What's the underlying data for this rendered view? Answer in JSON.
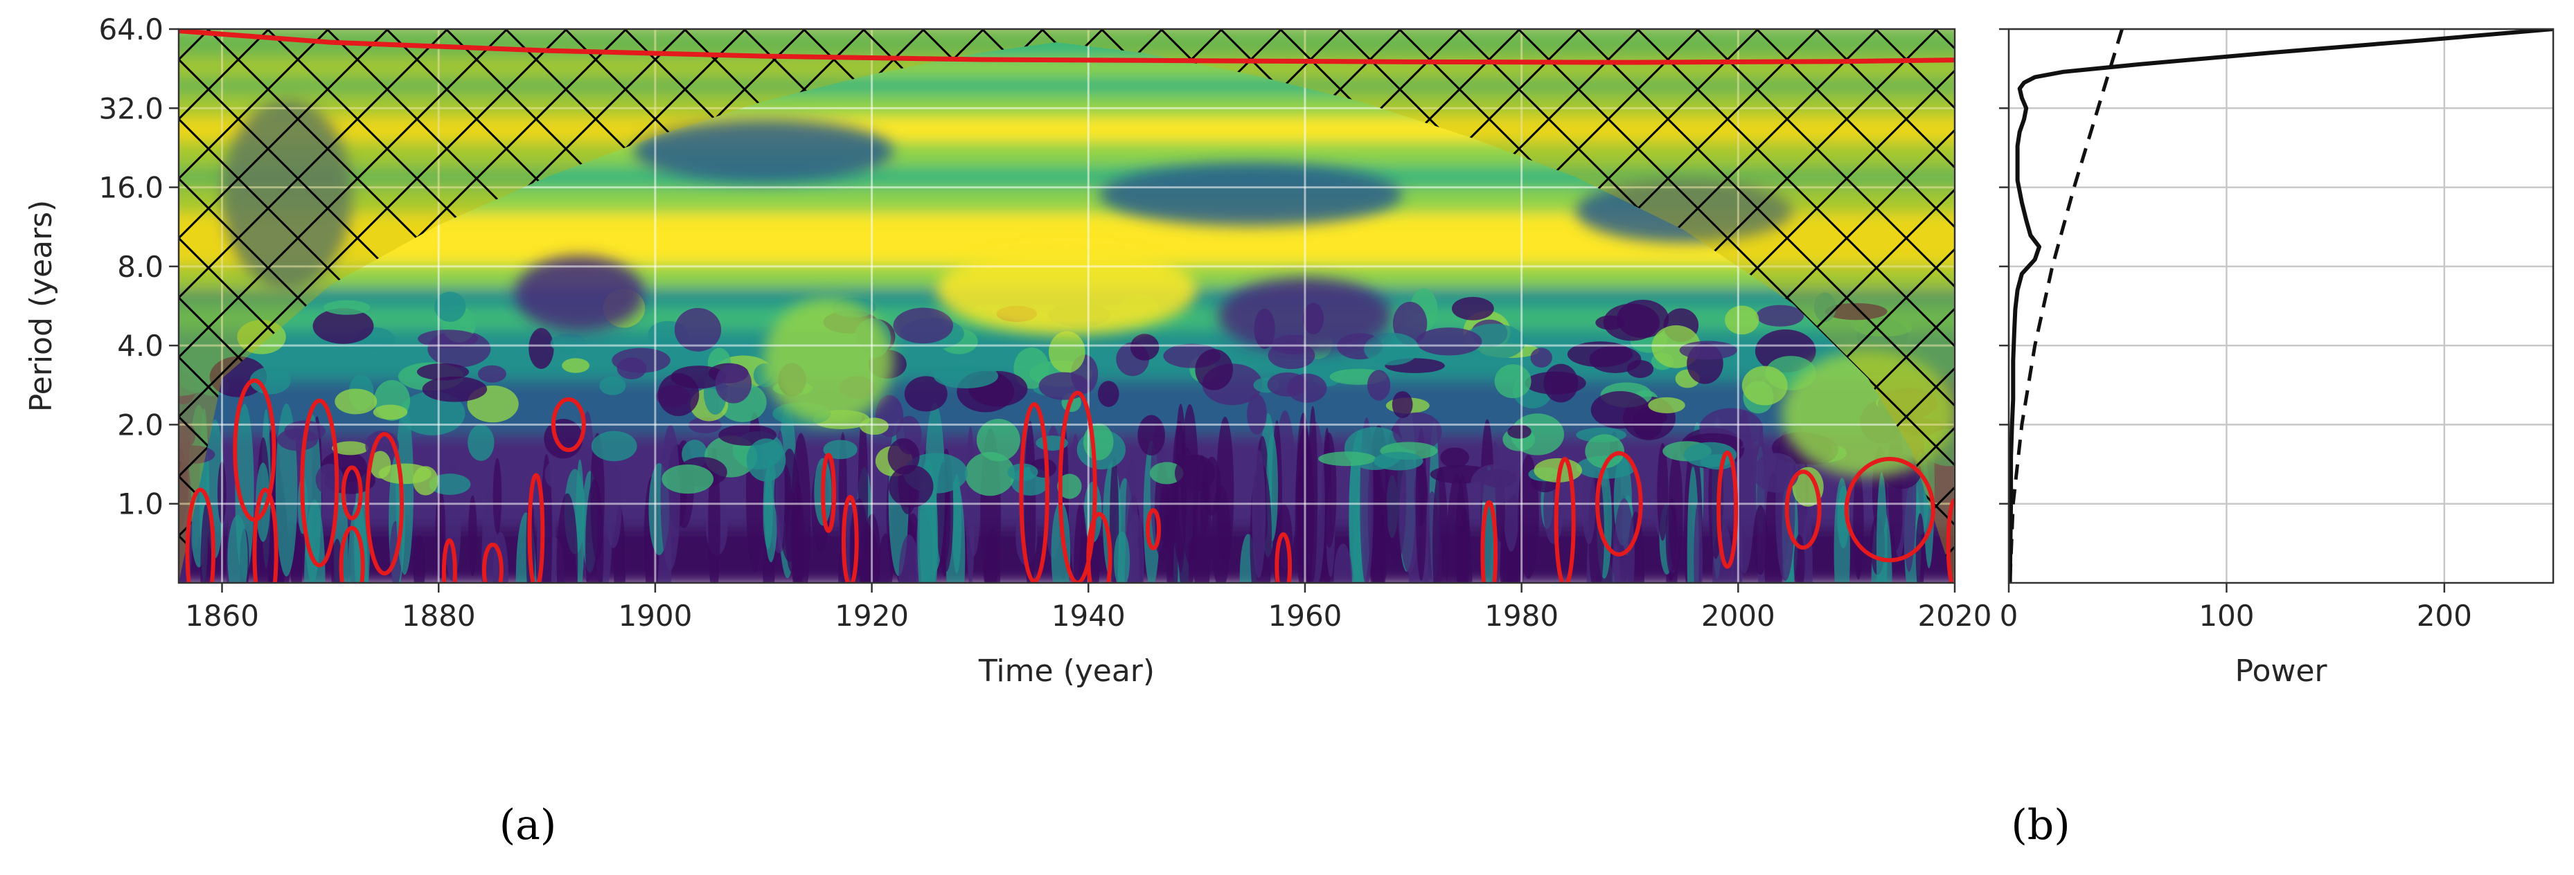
{
  "colors": {
    "viridis": [
      "#3b0a5e",
      "#472a7a",
      "#2c5d8a",
      "#21908c",
      "#3cb878",
      "#8fd24a",
      "#fde725"
    ],
    "significance": "#e41a1c",
    "global_power": "#111111"
  },
  "chart_data": [
    {
      "type": "heatmap",
      "panel_label": "(a)",
      "title": "",
      "xlabel": "Time (year)",
      "ylabel": "Period (years)",
      "xlim": [
        1856,
        2020
      ],
      "ylim": [
        0.5,
        64
      ],
      "y_scale": "log2",
      "x_ticks": [
        1860,
        1880,
        1900,
        1920,
        1940,
        1960,
        1980,
        2000,
        2020
      ],
      "y_ticks": [
        {
          "value": 1,
          "label": "1.0"
        },
        {
          "value": 2,
          "label": "2.0"
        },
        {
          "value": 4,
          "label": "4.0"
        },
        {
          "value": 8,
          "label": "8.0"
        },
        {
          "value": 16,
          "label": "16.0"
        },
        {
          "value": 32,
          "label": "32.0"
        },
        {
          "value": 64,
          "label": "64.0"
        }
      ],
      "grid": true,
      "colormap": "viridis",
      "cone_of_influence": {
        "shading": "hatched",
        "x": [
          1856,
          1860,
          1870,
          1880,
          1890,
          1900,
          1910,
          1920,
          1930,
          1937,
          1945,
          1955,
          1965,
          1975,
          1985,
          1995,
          2005,
          2012,
          2016,
          2020
        ],
        "period": [
          0.5,
          3.0,
          6.8,
          11.5,
          17.5,
          25.0,
          34.0,
          43.0,
          52.0,
          57.0,
          52.0,
          43.0,
          34.0,
          25.0,
          17.5,
          11.0,
          5.8,
          3.0,
          1.6,
          0.5
        ]
      },
      "significance_line": {
        "x": [
          1856,
          1870,
          1890,
          1910,
          1930,
          1950,
          1970,
          1990,
          2010,
          2020
        ],
        "period": [
          63.0,
          57.0,
          53.0,
          50.5,
          49.0,
          48.5,
          48.0,
          47.8,
          48.2,
          48.8
        ]
      },
      "power_bands": [
        {
          "period": 64,
          "level": 4
        },
        {
          "period": 52,
          "level": 4
        },
        {
          "period": 45,
          "level": 5
        },
        {
          "period": 38,
          "level": 4
        },
        {
          "period": 32,
          "level": 5
        },
        {
          "period": 26,
          "level": 6
        },
        {
          "period": 21,
          "level": 5
        },
        {
          "period": 17,
          "level": 4
        },
        {
          "period": 14,
          "level": 5
        },
        {
          "period": 11,
          "level": 6
        },
        {
          "period": 9,
          "level": 6
        },
        {
          "period": 7,
          "level": 5
        },
        {
          "period": 6,
          "level": 3
        },
        {
          "period": 5,
          "level": 4
        },
        {
          "period": 4,
          "level": 3
        },
        {
          "period": 3.2,
          "level": 3
        },
        {
          "period": 2.6,
          "level": 2
        },
        {
          "period": 2.0,
          "level": 2
        },
        {
          "period": 1.6,
          "level": 1
        },
        {
          "period": 1.2,
          "level": 1
        },
        {
          "period": 0.9,
          "level": 1
        },
        {
          "period": 0.7,
          "level": 0
        },
        {
          "period": 0.5,
          "level": 0
        }
      ],
      "features": [
        {
          "x": 1893,
          "period": 6.3,
          "dx": 6,
          "dp": 0.12,
          "level": 1
        },
        {
          "x": 1910,
          "period": 22,
          "dx": 12,
          "dp": 0.1,
          "level": 2
        },
        {
          "x": 1955,
          "period": 15,
          "dx": 14,
          "dp": 0.1,
          "level": 2
        },
        {
          "x": 1960,
          "period": 5.2,
          "dx": 8,
          "dp": 0.12,
          "level": 1
        },
        {
          "x": 1995,
          "period": 13,
          "dx": 10,
          "dp": 0.1,
          "level": 2
        },
        {
          "x": 1938,
          "period": 6.5,
          "dx": 12,
          "dp": 0.14,
          "level": 6
        },
        {
          "x": 1916,
          "period": 3.5,
          "dx": 6,
          "dp": 0.2,
          "level": 5
        },
        {
          "x": 2012,
          "period": 2.2,
          "dx": 8,
          "dp": 0.2,
          "level": 5
        },
        {
          "x": 1866,
          "period": 15,
          "dx": 6,
          "dp": 0.3,
          "level": 2
        }
      ],
      "significant_regions": [
        {
          "x": 1863,
          "period": 1.6,
          "dx": 1.8,
          "dp": 0.22
        },
        {
          "x": 1869,
          "period": 1.2,
          "dx": 1.6,
          "dp": 0.26
        },
        {
          "x": 1875,
          "period": 1.0,
          "dx": 1.6,
          "dp": 0.22
        },
        {
          "x": 1872,
          "period": 1.1,
          "dx": 0.8,
          "dp": 0.08
        },
        {
          "x": 1858,
          "period": 0.65,
          "dx": 1.2,
          "dp": 0.2
        },
        {
          "x": 1864,
          "period": 0.65,
          "dx": 1.0,
          "dp": 0.2
        },
        {
          "x": 1872,
          "period": 0.58,
          "dx": 1.0,
          "dp": 0.12
        },
        {
          "x": 1881,
          "period": 0.55,
          "dx": 0.5,
          "dp": 0.1
        },
        {
          "x": 1885,
          "period": 0.56,
          "dx": 0.8,
          "dp": 0.08
        },
        {
          "x": 1892,
          "period": 2.0,
          "dx": 1.4,
          "dp": 0.08
        },
        {
          "x": 1889,
          "period": 0.78,
          "dx": 0.6,
          "dp": 0.18
        },
        {
          "x": 1916,
          "period": 1.1,
          "dx": 0.5,
          "dp": 0.12
        },
        {
          "x": 1918,
          "period": 0.72,
          "dx": 0.6,
          "dp": 0.14
        },
        {
          "x": 1935,
          "period": 1.1,
          "dx": 1.2,
          "dp": 0.28
        },
        {
          "x": 1939,
          "period": 1.15,
          "dx": 1.6,
          "dp": 0.3
        },
        {
          "x": 1941,
          "period": 0.62,
          "dx": 1.0,
          "dp": 0.14
        },
        {
          "x": 1946,
          "period": 0.8,
          "dx": 0.5,
          "dp": 0.06
        },
        {
          "x": 1958,
          "period": 0.58,
          "dx": 0.6,
          "dp": 0.1
        },
        {
          "x": 1977,
          "period": 0.65,
          "dx": 0.6,
          "dp": 0.16
        },
        {
          "x": 1984,
          "period": 0.85,
          "dx": 0.8,
          "dp": 0.2
        },
        {
          "x": 1989,
          "period": 1.0,
          "dx": 2.0,
          "dp": 0.16
        },
        {
          "x": 1999,
          "period": 0.95,
          "dx": 0.8,
          "dp": 0.18
        },
        {
          "x": 2006,
          "period": 0.95,
          "dx": 1.5,
          "dp": 0.12
        },
        {
          "x": 2014,
          "period": 0.95,
          "dx": 4.0,
          "dp": 0.16
        },
        {
          "x": 2020,
          "period": 0.7,
          "dx": 0.6,
          "dp": 0.14
        }
      ]
    },
    {
      "type": "line",
      "panel_label": "(b)",
      "title": "",
      "xlabel": "Power",
      "ylabel": "",
      "xlim": [
        0,
        250
      ],
      "ylim": [
        0.5,
        64
      ],
      "y_scale": "log2",
      "x_ticks": [
        0,
        100,
        200
      ],
      "grid": true,
      "legend": "none",
      "series": [
        {
          "style": "solid",
          "period": [
            64,
            58,
            52,
            47,
            44,
            42,
            40,
            38,
            35,
            32,
            29,
            26,
            23,
            20,
            17,
            14,
            12,
            10.5,
            9.5,
            8.5,
            7.5,
            6.5,
            5.5,
            4.5,
            3.5,
            2.5,
            2.0,
            1.5,
            1.0,
            0.5
          ],
          "power": [
            250,
            190,
            120,
            60,
            25,
            12,
            7,
            5,
            6,
            8,
            7,
            5,
            4,
            4,
            4,
            6,
            8,
            10,
            14,
            12,
            6,
            4,
            3,
            2.5,
            2,
            2,
            1.5,
            1,
            1,
            0.5
          ]
        },
        {
          "style": "dashed",
          "period": [
            64,
            32,
            16,
            8,
            4,
            2,
            1,
            0.5
          ],
          "power": [
            52,
            41,
            30,
            20,
            12,
            6,
            2,
            0.5
          ]
        }
      ]
    }
  ]
}
